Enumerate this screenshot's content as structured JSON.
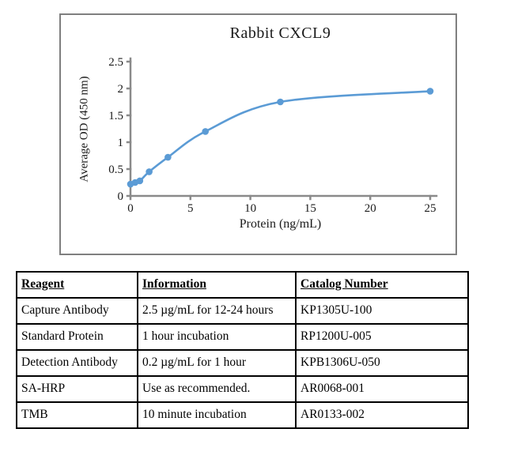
{
  "chart_data": {
    "type": "line",
    "title": "Rabbit CXCL9",
    "xlabel": "Protein (ng/mL)",
    "ylabel": "Average OD (450 nm)",
    "x": [
      0,
      0.39,
      0.78,
      1.56,
      3.125,
      6.25,
      12.5,
      25
    ],
    "y": [
      0.22,
      0.25,
      0.28,
      0.45,
      0.72,
      1.2,
      1.75,
      1.95
    ],
    "xlim": [
      0,
      25
    ],
    "ylim": [
      0,
      2.5
    ],
    "x_ticks": [
      0,
      5,
      10,
      15,
      20,
      25
    ],
    "y_ticks": [
      0,
      0.5,
      1,
      1.5,
      2,
      2.5
    ],
    "grid": false,
    "legend": "none",
    "line_color": "#5B9BD5",
    "marker_color": "#5B9BD5",
    "axis_color": "#8a8a8a",
    "tick_text_color": "#1a1a1a"
  },
  "table": {
    "headers": [
      "Reagent",
      "Information",
      "Catalog Number"
    ],
    "rows": [
      [
        "Capture Antibody",
        "2.5 µg/mL for 12-24 hours",
        "KP1305U-100"
      ],
      [
        "Standard Protein",
        "1 hour incubation",
        "RP1200U-005"
      ],
      [
        "Detection Antibody",
        "0.2 µg/mL for 1 hour",
        "KPB1306U-050"
      ],
      [
        "SA-HRP",
        "Use as recommended.",
        "AR0068-001"
      ],
      [
        "TMB",
        "10 minute incubation",
        "AR0133-002"
      ]
    ]
  }
}
